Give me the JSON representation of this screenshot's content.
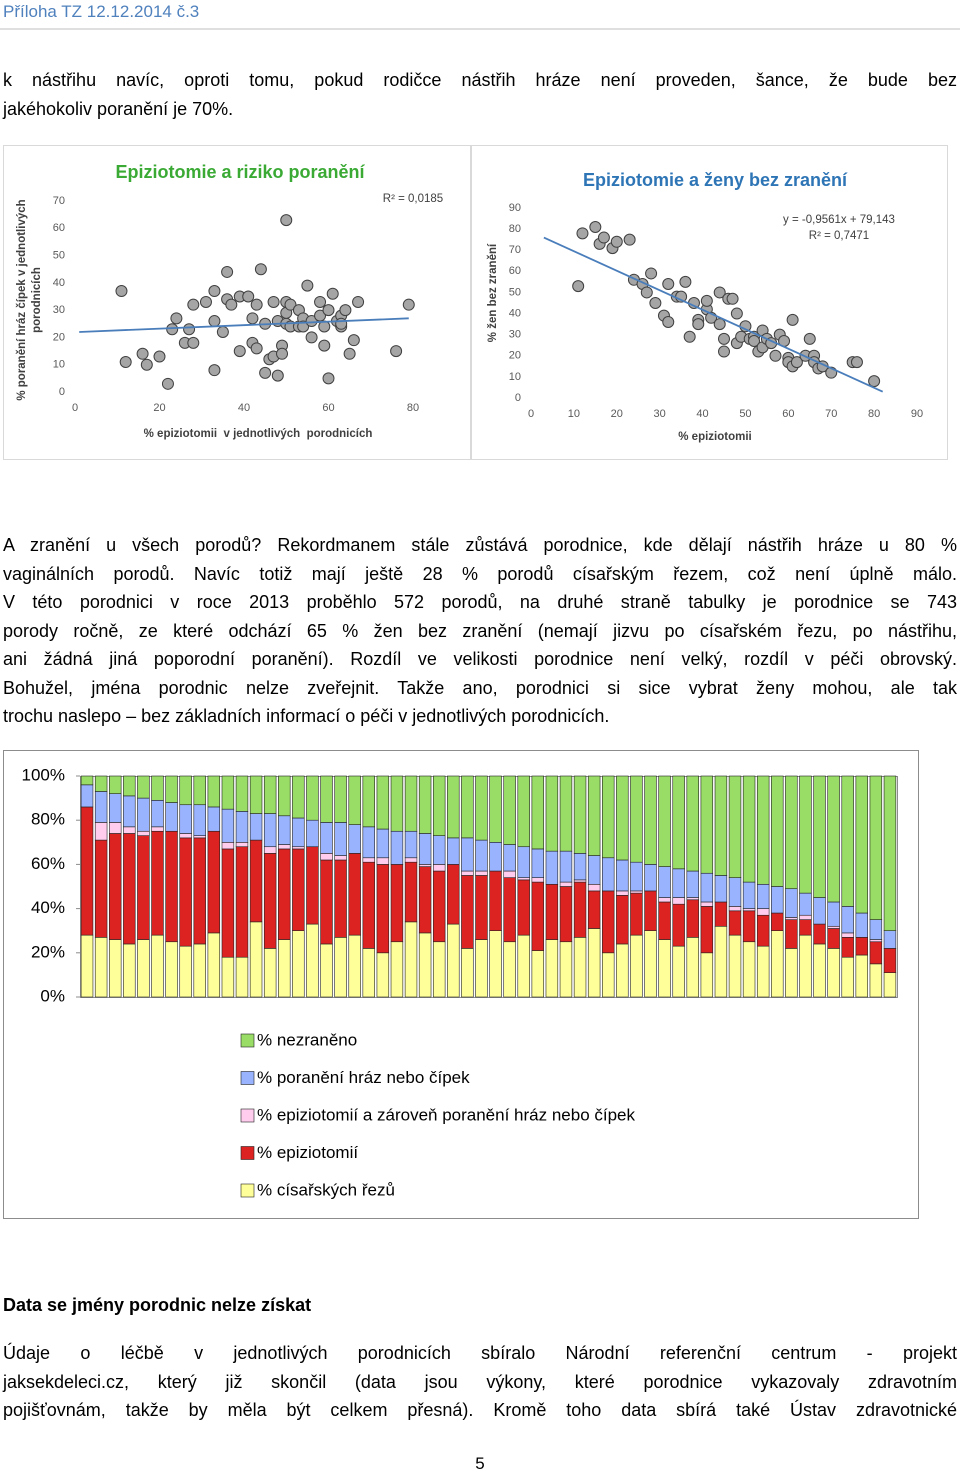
{
  "document": {
    "header": "Příloha TZ 12.12.2014 č.3",
    "paragraph_1": [
      "k nástřihu navíc, oproti tomu, pokud rodičce nástřih hráze není proveden, šance, že bude bez",
      "jakéhokoliv poranění je 70%."
    ],
    "paragraph_2": [
      "A zranění u všech porodů? Rekordmanem stále zůstává porodnice, kde dělají nástřih hráze u 80 %",
      "vaginálních porodů. Navíc totiž mají ještě 28 % porodů císařským řezem, což není úplně málo.",
      "V této porodnici v roce 2013 proběhlo 572 porodů, na druhé straně tabulky je porodnice se 743",
      "porody ročně, ze které odchází 65 % žen bez zranění (nemají jizvu po císařském řezu, po nástřihu,",
      "ani žádná jiná poporodní poranění). Rozdíl ve velikosti porodnice není velký, rozdíl v péči obrovský.",
      "Bohužel, jména porodnic nelze zveřejnit. Takže ano, porodnici si sice vybrat ženy mohou, ale tak",
      "trochu naslepo – bez základních informací o péči v jednotlivých porodnicích."
    ],
    "heading": "Data se jmény porodnic nelze získat",
    "paragraph_3": [
      "Údaje o léčbě v jednotlivých porodnicích sbíralo Národní referenční centrum - projekt",
      "jaksekdeleci.cz, který již skončil (data jsou výkony, které porodnice vykazovaly zdravotním",
      "pojišťovnám, takže by měla být celkem přesná). Kromě toho data sbírá také Ústav zdravotnické"
    ],
    "page_number": 5
  },
  "chart_data": [
    {
      "type": "scatter",
      "title": "Epiziotomie a riziko poranění",
      "x_label": "% epiziotomii  v jednotlivých  porodnicích",
      "y_label": [
        "% poranění hráz čípek v jednotlivých",
        "porodnicích"
      ],
      "annotations": [
        "R² = 0,0185"
      ],
      "xlim": [
        0,
        80
      ],
      "xticks": [
        0,
        20,
        40,
        60,
        80
      ],
      "ylim": [
        0,
        70
      ],
      "yticks": [
        0,
        10,
        20,
        30,
        40,
        50,
        60,
        70
      ],
      "color": "#a5a5a5",
      "edge_color": "#404040",
      "x": [
        11,
        12,
        16,
        17,
        20,
        22,
        23,
        24,
        26,
        27,
        28,
        28,
        31,
        33,
        33,
        33,
        35,
        36,
        36,
        37,
        39,
        39,
        41,
        42,
        42,
        43,
        43,
        44,
        45,
        45,
        46,
        47,
        47,
        48,
        48,
        49,
        49,
        50,
        50,
        50,
        50,
        51,
        51,
        53,
        53,
        54,
        54,
        55,
        56,
        56,
        58,
        58,
        59,
        59,
        60,
        60,
        61,
        62,
        63,
        63,
        63,
        64,
        65,
        66,
        67,
        76,
        79
      ],
      "values": [
        37,
        11,
        14,
        10,
        13,
        3,
        23,
        27,
        18,
        23,
        32,
        18,
        33,
        37,
        26,
        8,
        22,
        44,
        34,
        32,
        35,
        15,
        35,
        18,
        27,
        16,
        32,
        45,
        25,
        7,
        12,
        33,
        13,
        26,
        6,
        17,
        14,
        33,
        63,
        25,
        29,
        24,
        32,
        30,
        24,
        27,
        24,
        39,
        20,
        26,
        33,
        28,
        24,
        17,
        5,
        30,
        36,
        26,
        24,
        28,
        25,
        30,
        14,
        19,
        33,
        15,
        32
      ],
      "trendline": {
        "x": [
          1,
          79
        ],
        "y": [
          22,
          27
        ],
        "color": "#4a7ebb"
      }
    },
    {
      "type": "scatter",
      "title": "Epiziotomie a ženy bez zranění",
      "x_label": "% epiziotomii",
      "y_label": [
        "% žen bez zranění"
      ],
      "annotations": [
        "y = -0,9561x + 79,143",
        "R² = 0,7471"
      ],
      "xlim": [
        0,
        90
      ],
      "xticks": [
        0,
        10,
        20,
        30,
        40,
        50,
        60,
        70,
        80,
        90
      ],
      "ylim": [
        0,
        90
      ],
      "yticks": [
        0,
        10,
        20,
        30,
        40,
        50,
        60,
        70,
        80,
        90
      ],
      "color": "#a5a5a5",
      "edge_color": "#404040",
      "x": [
        11,
        12,
        15,
        16,
        17,
        19,
        20,
        23,
        24,
        26,
        27,
        28,
        29,
        31,
        32,
        32,
        34,
        35,
        36,
        37,
        38,
        39,
        39,
        41,
        41,
        42,
        44,
        44,
        45,
        45,
        46,
        47,
        48,
        48,
        49,
        50,
        51,
        52,
        52,
        53,
        54,
        54,
        55,
        56,
        57,
        58,
        59,
        60,
        60,
        61,
        61,
        62,
        64,
        65,
        66,
        66,
        67,
        68,
        70,
        75,
        76,
        80
      ],
      "values": [
        53,
        78,
        81,
        73,
        76,
        71,
        74,
        75,
        56,
        54,
        50,
        59,
        45,
        39,
        54,
        36,
        48,
        48,
        55,
        29,
        45,
        37,
        35,
        42,
        46,
        38,
        35,
        50,
        28,
        22,
        47,
        47,
        40,
        26,
        29,
        34,
        28,
        29,
        27,
        22,
        32,
        24,
        28,
        26,
        20,
        30,
        27,
        19,
        17,
        37,
        15,
        17,
        20,
        28,
        20,
        17,
        14,
        15,
        12,
        17,
        17,
        8
      ],
      "trendline": {
        "x": [
          3,
          82
        ],
        "y": [
          76,
          3
        ],
        "color": "#4a7ebb"
      }
    },
    {
      "type": "stacked_bar",
      "categories": [
        null,
        null,
        null,
        null,
        null,
        null,
        null,
        null,
        null,
        null,
        null,
        null,
        null,
        null,
        null,
        null,
        null,
        null,
        null,
        null,
        null,
        null,
        null,
        null,
        null,
        null,
        null,
        null,
        null,
        null,
        null,
        null,
        null,
        null,
        null,
        null,
        null,
        null,
        null,
        null,
        null,
        null,
        null,
        null,
        null,
        null,
        null,
        null,
        null,
        null,
        null,
        null,
        null,
        null,
        null,
        null,
        null,
        null
      ],
      "ylim": [
        0,
        100
      ],
      "yticks": [
        {
          "value": 0,
          "label": "0%"
        },
        {
          "value": 20,
          "label": "20%"
        },
        {
          "value": 40,
          "label": "40%"
        },
        {
          "value": 60,
          "label": "60%"
        },
        {
          "value": 80,
          "label": "80%"
        },
        {
          "value": 100,
          "label": "100%"
        }
      ],
      "series": [
        {
          "name": "% nezraněno",
          "color": "#99dd66",
          "values": [
            4,
            7,
            8,
            9,
            10,
            11,
            12,
            13,
            13,
            14,
            15,
            16,
            17,
            17,
            18,
            19,
            20,
            21,
            21,
            22,
            23,
            24,
            25,
            25,
            26,
            27,
            28,
            28,
            29,
            30,
            31,
            32,
            33,
            34,
            34,
            35,
            36,
            37,
            38,
            39,
            40,
            41,
            42,
            43,
            44,
            45,
            46,
            48,
            49,
            50,
            51,
            53,
            55,
            57,
            59,
            62,
            65,
            70
          ]
        },
        {
          "name": "% poranění hráz nebo čípek",
          "color": "#99b3ff",
          "values": [
            10,
            14,
            13,
            14,
            15,
            12,
            13,
            13,
            14,
            11,
            15,
            14,
            12,
            15,
            13,
            13,
            12,
            14,
            15,
            13,
            14,
            13,
            15,
            12,
            14,
            13,
            12,
            15,
            14,
            13,
            12,
            14,
            13,
            15,
            14,
            12,
            13,
            15,
            14,
            13,
            12,
            14,
            13,
            12,
            13,
            12,
            13,
            12,
            11,
            12,
            13,
            10,
            12,
            11,
            12,
            11,
            9,
            8
          ]
        },
        {
          "name": "% epiziotomií a zároveň poranění hráz nebo čípek",
          "color": "#ffccee",
          "values": [
            0,
            8,
            5,
            3,
            2,
            2,
            0,
            2,
            1,
            0,
            3,
            2,
            0,
            3,
            2,
            1,
            0,
            3,
            2,
            0,
            2,
            3,
            0,
            2,
            1,
            3,
            0,
            2,
            2,
            0,
            3,
            1,
            2,
            0,
            2,
            1,
            3,
            0,
            2,
            1,
            0,
            2,
            3,
            1,
            2,
            0,
            2,
            1,
            3,
            0,
            1,
            2,
            0,
            1,
            2,
            0,
            1,
            0
          ]
        },
        {
          "name": "% epiziotomií",
          "color": "#dd2222",
          "values": [
            58,
            44,
            48,
            50,
            47,
            47,
            50,
            49,
            48,
            46,
            49,
            50,
            37,
            43,
            41,
            37,
            35,
            38,
            35,
            37,
            39,
            40,
            35,
            27,
            30,
            32,
            27,
            33,
            29,
            27,
            29,
            25,
            31,
            25,
            25,
            25,
            17,
            28,
            22,
            19,
            18,
            17,
            19,
            17,
            21,
            11,
            11,
            14,
            14,
            8,
            13,
            7,
            9,
            9,
            9,
            8,
            10,
            11
          ]
        },
        {
          "name": "% císařských řezů",
          "color": "#ffff99",
          "values": [
            28,
            27,
            26,
            24,
            26,
            28,
            25,
            23,
            24,
            29,
            18,
            18,
            34,
            22,
            26,
            30,
            33,
            24,
            27,
            28,
            22,
            20,
            25,
            34,
            29,
            25,
            33,
            22,
            26,
            30,
            25,
            28,
            21,
            26,
            25,
            27,
            31,
            20,
            24,
            28,
            30,
            26,
            23,
            27,
            20,
            32,
            28,
            25,
            23,
            30,
            22,
            28,
            24,
            22,
            18,
            19,
            15,
            11
          ]
        }
      ]
    }
  ]
}
